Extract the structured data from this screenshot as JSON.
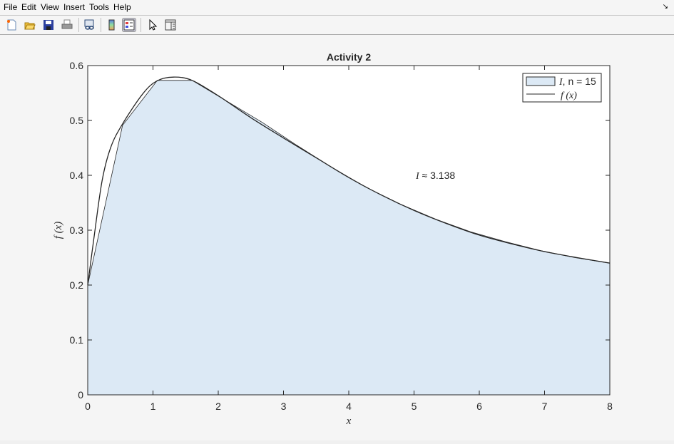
{
  "menu": [
    "File",
    "Edit",
    "View",
    "Insert",
    "Tools",
    "Help"
  ],
  "toolbar": [
    {
      "icon": "new-figure-icon"
    },
    {
      "icon": "open-file-icon"
    },
    {
      "icon": "save-icon"
    },
    {
      "icon": "print-icon"
    },
    {
      "icon": "link-plot-icon"
    },
    {
      "icon": "colorbar-icon"
    },
    {
      "icon": "legend-icon",
      "pressed": true
    },
    {
      "icon": "pointer-icon"
    },
    {
      "icon": "property-inspector-icon"
    }
  ],
  "chart_data": {
    "type": "area",
    "title": "Activity 2",
    "xlabel": "x",
    "ylabel": "f (x)",
    "xlim": [
      0,
      8
    ],
    "ylim": [
      0,
      0.6
    ],
    "xticks": [
      0,
      1,
      2,
      3,
      4,
      5,
      6,
      7,
      8
    ],
    "yticks": [
      0,
      0.1,
      0.2,
      0.3,
      0.4,
      0.5,
      0.6
    ],
    "ytick_labels": [
      "0",
      "0.1",
      "0.2",
      "0.3",
      "0.4",
      "0.5",
      "0.6"
    ],
    "grid": false,
    "legend_position": "top-right",
    "legend": [
      {
        "label_italic": "I",
        "label_rest": ", n = 15",
        "kind": "patch"
      },
      {
        "label_italic": "f (x)",
        "label_rest": "",
        "kind": "line"
      }
    ],
    "annotation": {
      "italic": "I",
      "rest": " ≈  3.138"
    },
    "fill_color": "#dce9f5",
    "line_color": "#262626",
    "trapezoid": {
      "n": 15,
      "x": [
        0,
        0.5333,
        1.0667,
        1.6,
        2.1333,
        2.6667,
        3.2,
        3.7333,
        4.2667,
        4.8,
        5.3333,
        5.8667,
        6.4,
        6.9333,
        7.4667,
        8
      ],
      "y": [
        0.2,
        0.491,
        0.573,
        0.573,
        0.535,
        0.497,
        0.455,
        0.415,
        0.378,
        0.347,
        0.32,
        0.297,
        0.279,
        0.263,
        0.25,
        0.24
      ]
    },
    "curve": {
      "x": [
        0,
        0.1,
        0.22,
        0.35,
        0.525,
        0.84,
        1.06,
        1.315,
        1.6,
        2,
        2.5,
        3,
        3.5,
        4,
        4.5,
        5,
        5.5,
        6,
        6.5,
        7,
        7.5,
        8
      ],
      "y": [
        0.2,
        0.29,
        0.39,
        0.45,
        0.492,
        0.548,
        0.572,
        0.579,
        0.573,
        0.545,
        0.505,
        0.468,
        0.432,
        0.396,
        0.364,
        0.336,
        0.312,
        0.291,
        0.275,
        0.261,
        0.25,
        0.24
      ]
    }
  }
}
